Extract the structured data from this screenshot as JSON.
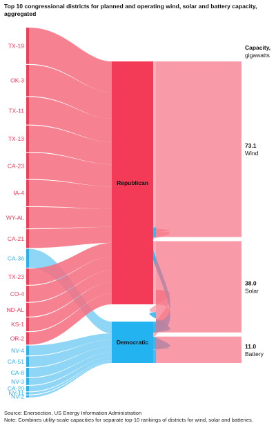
{
  "title": "Top 10 congressional districts for planned and operating wind, solar and battery capacity, aggregated",
  "colors": {
    "republican": "#f33a57",
    "republican_light": "#f56f82",
    "democratic": "#24b3f1",
    "democratic_light": "#7fd0f5",
    "text": "#111111"
  },
  "chart_data": {
    "type": "sankey",
    "title": "Top 10 congressional districts for planned and operating wind, solar and battery capacity, aggregated",
    "capacity_header": [
      "Capacity,",
      "gigawatts"
    ],
    "districts": [
      {
        "label": "TX-19",
        "party": "Republican"
      },
      {
        "label": "OK-3",
        "party": "Republican"
      },
      {
        "label": "TX-11",
        "party": "Republican"
      },
      {
        "label": "TX-13",
        "party": "Republican"
      },
      {
        "label": "CA-23",
        "party": "Republican"
      },
      {
        "label": "IA-4",
        "party": "Republican"
      },
      {
        "label": "WY-AL",
        "party": "Republican"
      },
      {
        "label": "CA-21",
        "party": "Republican"
      },
      {
        "label": "CA-36",
        "party": "Democratic"
      },
      {
        "label": "TX-23",
        "party": "Republican"
      },
      {
        "label": "CO-4",
        "party": "Republican"
      },
      {
        "label": "ND-AL",
        "party": "Republican"
      },
      {
        "label": "KS-1",
        "party": "Republican"
      },
      {
        "label": "OR-2",
        "party": "Republican"
      },
      {
        "label": "NV-4",
        "party": "Democratic"
      },
      {
        "label": "CA-51",
        "party": "Democratic"
      },
      {
        "label": "CA-8",
        "party": "Democratic"
      },
      {
        "label": "NV-3",
        "party": "Democratic"
      },
      {
        "label": "CA-20",
        "party": "Democratic"
      },
      {
        "label": "NY-11",
        "party": "Democratic"
      },
      {
        "label": "NV-2",
        "party": "Democratic"
      }
    ],
    "parties": [
      "Republican",
      "Democratic"
    ],
    "technologies": [
      {
        "name": "Wind",
        "value": 73.1,
        "value_label": "73.1"
      },
      {
        "name": "Solar",
        "value": 38.0,
        "value_label": "38.0"
      },
      {
        "name": "Battery",
        "value": 11.0,
        "value_label": "11.0"
      }
    ]
  },
  "footer": {
    "source": "Source: Enersection, US Energy Information Administration",
    "note": "Note: Combines utility-scale capacities for separate top-10 rankings of districts for wind, solar and batteries."
  }
}
